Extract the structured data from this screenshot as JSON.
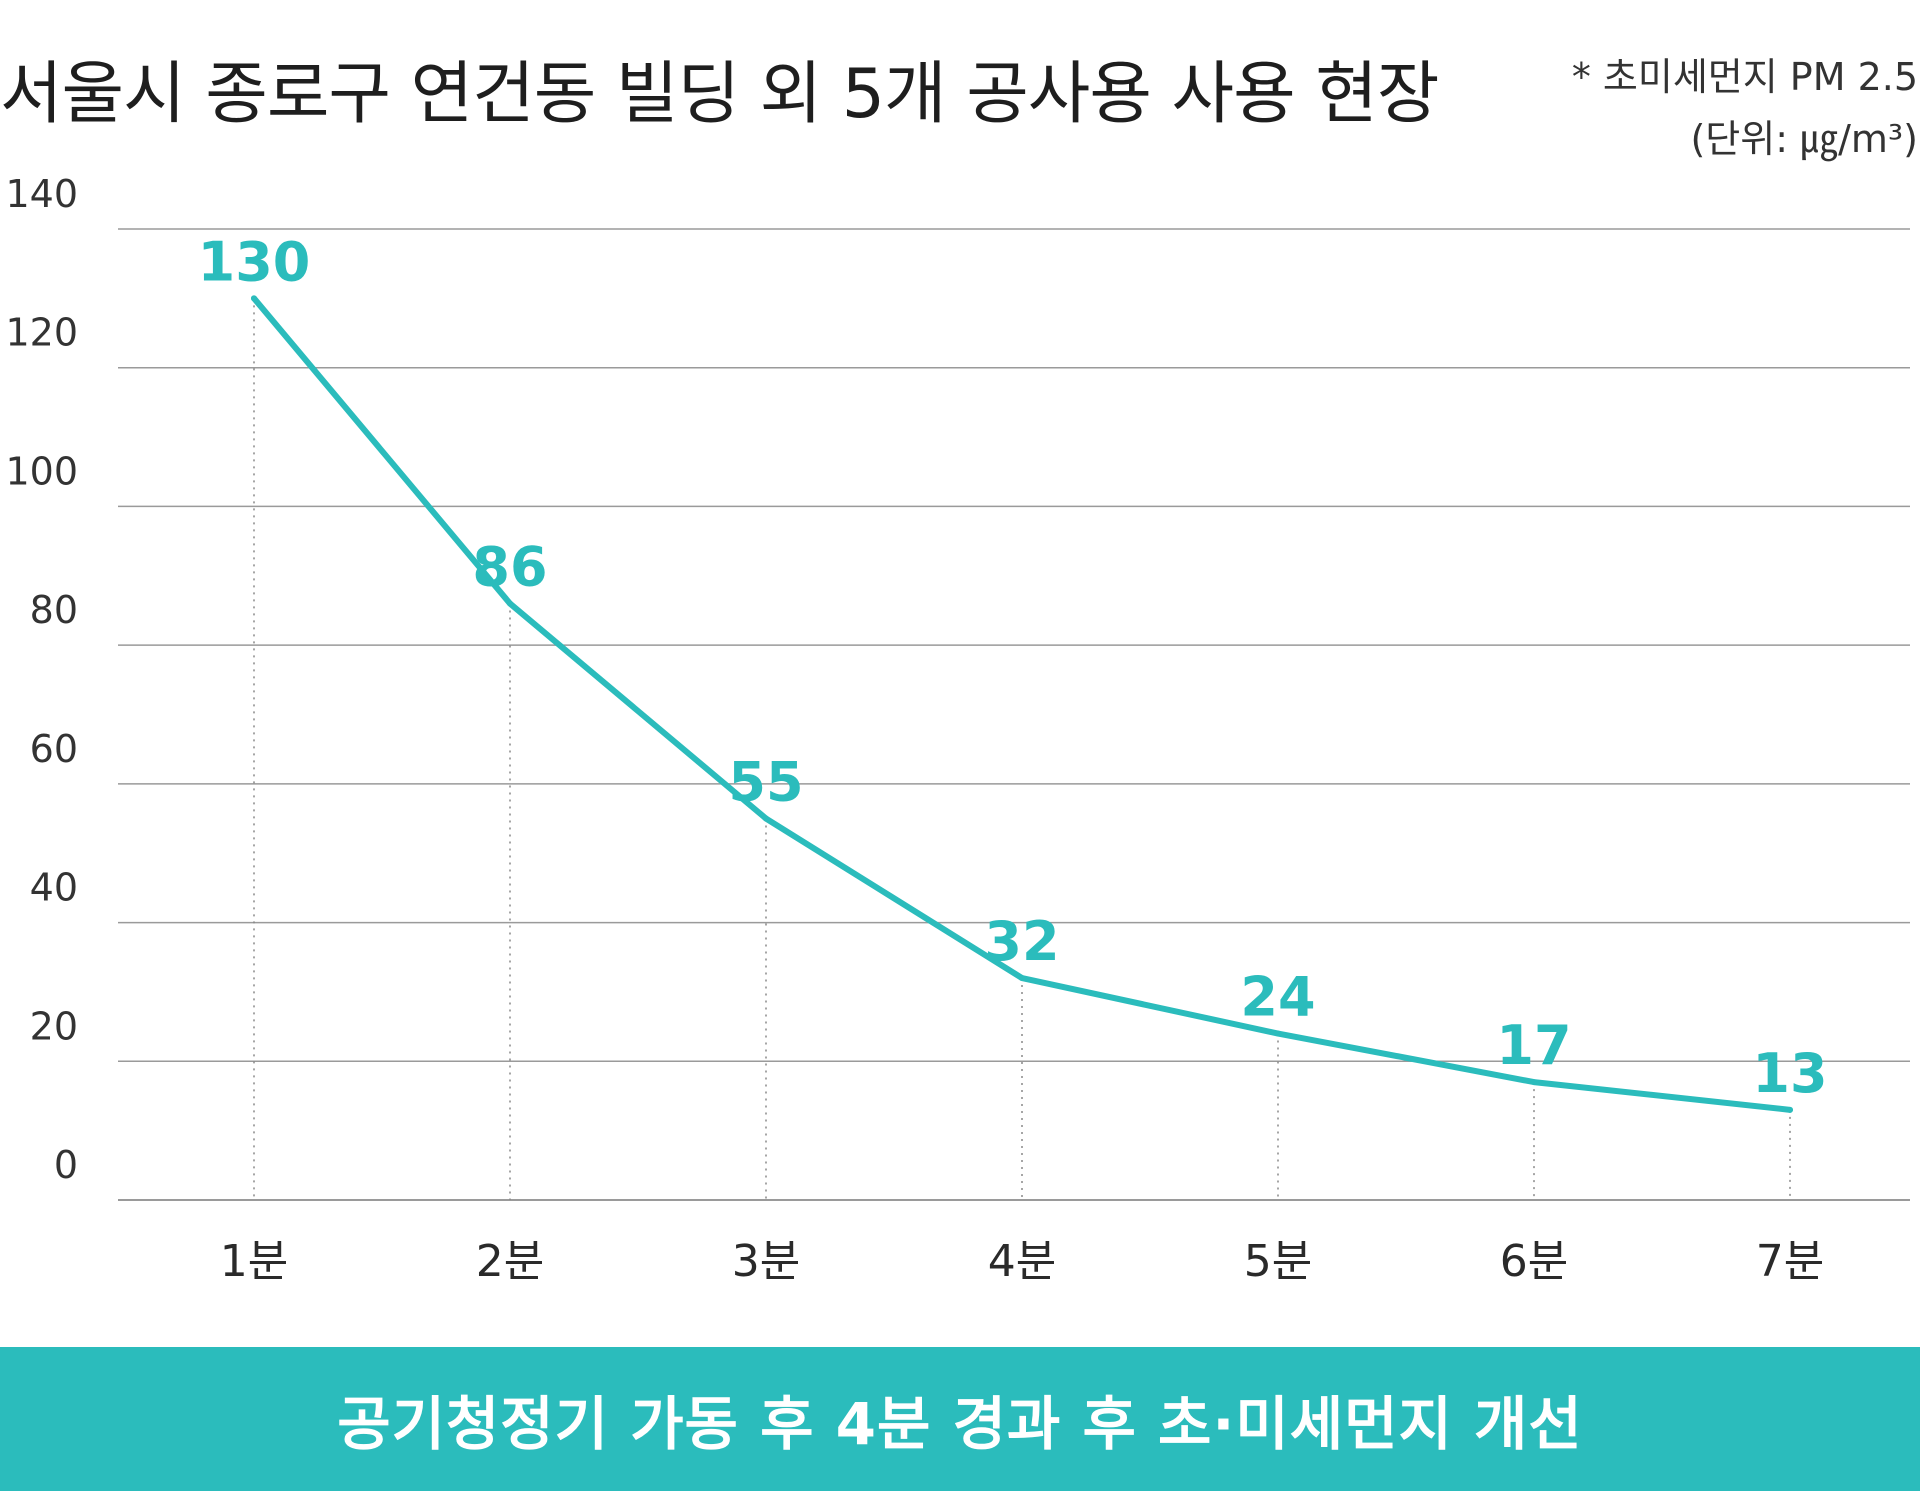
{
  "header": {
    "title": "서울시 종로구 연건동 빌딩 외 5개 공사용 사용 현장",
    "note_line1": "* 초미세먼지 PM 2.5",
    "note_line2": "(단위: ㎍/m³)"
  },
  "banner": {
    "text": "공기청정기 가동 후 4분 경과 후 초·미세먼지 개선",
    "color": "#2bbcbc"
  },
  "colors": {
    "line": "#2bbcbc",
    "label": "#2bbcbc",
    "grid": "#9a9a9a",
    "axis_text": "#333333"
  },
  "chart_data": {
    "type": "line",
    "categories": [
      "1분",
      "2분",
      "3분",
      "4분",
      "5분",
      "6분",
      "7분"
    ],
    "series": [
      {
        "values": [
          130,
          86,
          55,
          32,
          24,
          17,
          13
        ]
      }
    ],
    "data_labels": [
      "130",
      "86",
      "55",
      "32",
      "24",
      "17",
      "13"
    ],
    "yticks": [
      "0",
      "20",
      "40",
      "60",
      "80",
      "100",
      "120",
      "140"
    ],
    "ylim": [
      0,
      140
    ],
    "grid": true,
    "legend": "none"
  }
}
